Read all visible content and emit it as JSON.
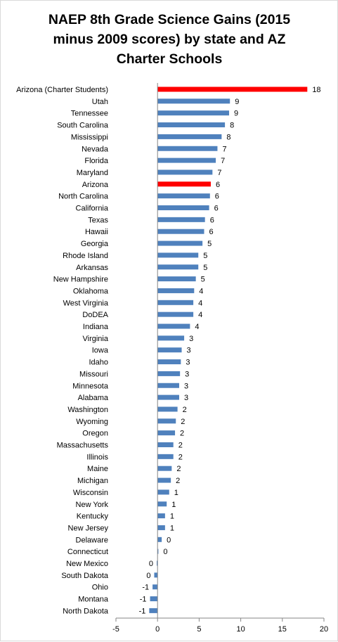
{
  "chart_data": {
    "type": "bar",
    "orientation": "horizontal",
    "title": "NAEP 8th Grade Science Gains (2015 minus 2009 scores) by state and AZ Charter Schools",
    "title_lines": [
      "NAEP 8th Grade Science Gains (2015",
      "minus 2009 scores) by state and AZ",
      "Charter Schools"
    ],
    "xlabel": "",
    "ylabel": "",
    "xlim": [
      -5,
      20
    ],
    "xticks": [
      -5,
      0,
      5,
      10,
      15,
      20
    ],
    "grid": false,
    "legend": "none",
    "categories": [
      "Arizona (Charter Students)",
      "Utah",
      "Tennessee",
      "South Carolina",
      "Mississippi",
      "Nevada",
      "Florida",
      "Maryland",
      "Arizona",
      "North Carolina",
      "California",
      "Texas",
      "Hawaii",
      "Georgia",
      "Rhode Island",
      "Arkansas",
      "New Hampshire",
      "Oklahoma",
      "West Virginia",
      "DoDEA",
      "Indiana",
      "Virginia",
      "Iowa",
      "Idaho",
      "Missouri",
      "Minnesota",
      "Alabama",
      "Washington",
      "Wyoming",
      "Oregon",
      "Massachusetts",
      "Illinois",
      "Maine",
      "Michigan",
      "Wisconsin",
      "New York",
      "Kentucky",
      "New Jersey",
      "Delaware",
      "Connecticut",
      "New Mexico",
      "South Dakota",
      "Ohio",
      "Montana",
      "North Dakota"
    ],
    "values": [
      18,
      8.7,
      8.6,
      8.1,
      7.7,
      7.2,
      7.0,
      6.6,
      6.4,
      6.3,
      6.2,
      5.7,
      5.6,
      5.4,
      4.9,
      4.9,
      4.6,
      4.4,
      4.3,
      4.3,
      3.9,
      3.2,
      2.9,
      2.8,
      2.7,
      2.6,
      2.6,
      2.4,
      2.2,
      2.1,
      1.9,
      1.9,
      1.7,
      1.6,
      1.4,
      1.1,
      0.9,
      0.9,
      0.5,
      0.1,
      -0.1,
      -0.4,
      -0.6,
      -0.9,
      -1.0
    ],
    "data_labels": [
      "18",
      "9",
      "9",
      "8",
      "8",
      "7",
      "7",
      "7",
      "6",
      "6",
      "6",
      "6",
      "6",
      "5",
      "5",
      "5",
      "5",
      "4",
      "4",
      "4",
      "4",
      "3",
      "3",
      "3",
      "3",
      "3",
      "3",
      "2",
      "2",
      "2",
      "2",
      "2",
      "2",
      "2",
      "1",
      "1",
      "1",
      "1",
      "0",
      "0",
      "0",
      "0",
      "-1",
      "-1",
      "-1"
    ],
    "colors": {
      "default": "#4f81bd",
      "highlight": "#ff0000",
      "axis": "#868686"
    },
    "highlighted": [
      "Arizona (Charter Students)",
      "Arizona"
    ]
  }
}
